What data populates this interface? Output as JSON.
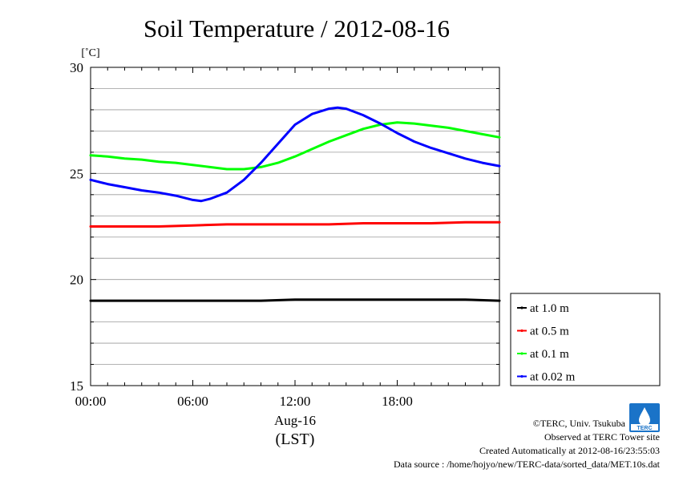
{
  "chart_data": {
    "type": "line",
    "title": "Soil Temperature / 2012-08-16",
    "ylabel": "[˚C]",
    "xlabel_date": "Aug-16",
    "xlabel_unit": "(LST)",
    "ylim": [
      15,
      30
    ],
    "xlim": [
      0,
      24
    ],
    "yticks": [
      {
        "value": 15,
        "label": "15"
      },
      {
        "value": 20,
        "label": "20"
      },
      {
        "value": 25,
        "label": "25"
      },
      {
        "value": 30,
        "label": "30"
      }
    ],
    "xticks": [
      {
        "value": 0,
        "label": "00:00"
      },
      {
        "value": 6,
        "label": "06:00"
      },
      {
        "value": 12,
        "label": "12:00"
      },
      {
        "value": 18,
        "label": "18:00"
      }
    ],
    "grid": true,
    "legend_position": "right",
    "series": [
      {
        "name": "at 1.0 m",
        "color": "#000000",
        "x": [
          0,
          2,
          4,
          6,
          8,
          10,
          12,
          14,
          16,
          18,
          20,
          22,
          24
        ],
        "y": [
          19.0,
          19.0,
          19.0,
          19.0,
          19.0,
          19.0,
          19.05,
          19.05,
          19.05,
          19.05,
          19.05,
          19.05,
          19.0
        ]
      },
      {
        "name": "at 0.5 m",
        "color": "#ff0000",
        "x": [
          0,
          2,
          4,
          6,
          8,
          10,
          12,
          14,
          16,
          18,
          20,
          22,
          24
        ],
        "y": [
          22.5,
          22.5,
          22.5,
          22.55,
          22.6,
          22.6,
          22.6,
          22.6,
          22.65,
          22.65,
          22.65,
          22.7,
          22.7
        ]
      },
      {
        "name": "at 0.1 m",
        "color": "#00ff00",
        "x": [
          0,
          1,
          2,
          3,
          4,
          5,
          6,
          7,
          8,
          9,
          10,
          11,
          12,
          13,
          14,
          15,
          16,
          17,
          18,
          19,
          20,
          21,
          22,
          23,
          24
        ],
        "y": [
          25.85,
          25.8,
          25.7,
          25.65,
          25.55,
          25.5,
          25.4,
          25.3,
          25.2,
          25.2,
          25.3,
          25.5,
          25.8,
          26.15,
          26.5,
          26.8,
          27.1,
          27.3,
          27.4,
          27.35,
          27.25,
          27.15,
          27.0,
          26.85,
          26.7
        ]
      },
      {
        "name": "at 0.02 m",
        "color": "#0000ff",
        "x": [
          0,
          1,
          2,
          3,
          4,
          5,
          6,
          6.5,
          7,
          8,
          9,
          10,
          11,
          12,
          13,
          14,
          14.5,
          15,
          16,
          17,
          18,
          19,
          20,
          21,
          22,
          23,
          24
        ],
        "y": [
          24.7,
          24.5,
          24.35,
          24.2,
          24.1,
          23.95,
          23.75,
          23.7,
          23.8,
          24.1,
          24.7,
          25.5,
          26.4,
          27.3,
          27.8,
          28.05,
          28.1,
          28.05,
          27.75,
          27.35,
          26.9,
          26.5,
          26.2,
          25.95,
          25.7,
          25.5,
          25.35
        ]
      }
    ]
  },
  "credits": {
    "copyright": "©TERC, Univ. Tsukuba",
    "observed": "Observed at TERC Tower site",
    "created": "Created Automatically at 2012-08-16/23:55:03",
    "source": "Data source : /home/hojyo/new/TERC-data/sorted_data/MET.10s.dat",
    "logo_text": "TERC"
  }
}
